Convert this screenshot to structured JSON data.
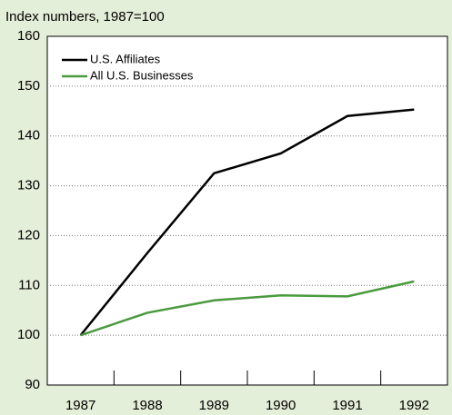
{
  "chart_data": {
    "type": "line",
    "subtitle": "Index numbers, 1987=100",
    "categories": [
      "1987",
      "1988",
      "1989",
      "1990",
      "1991",
      "1992"
    ],
    "series": [
      {
        "name": "U.S. Affiliates",
        "color": "#000000",
        "values": [
          100,
          116.5,
          132.5,
          136.5,
          144,
          145.3
        ]
      },
      {
        "name": "All U.S. Businesses",
        "color": "#4a9a3e",
        "values": [
          100,
          104.5,
          107,
          108,
          107.8,
          110.8
        ]
      }
    ],
    "ylim": [
      90,
      160
    ],
    "yticks": [
      90,
      100,
      110,
      120,
      130,
      140,
      150,
      160
    ],
    "grid": true
  }
}
